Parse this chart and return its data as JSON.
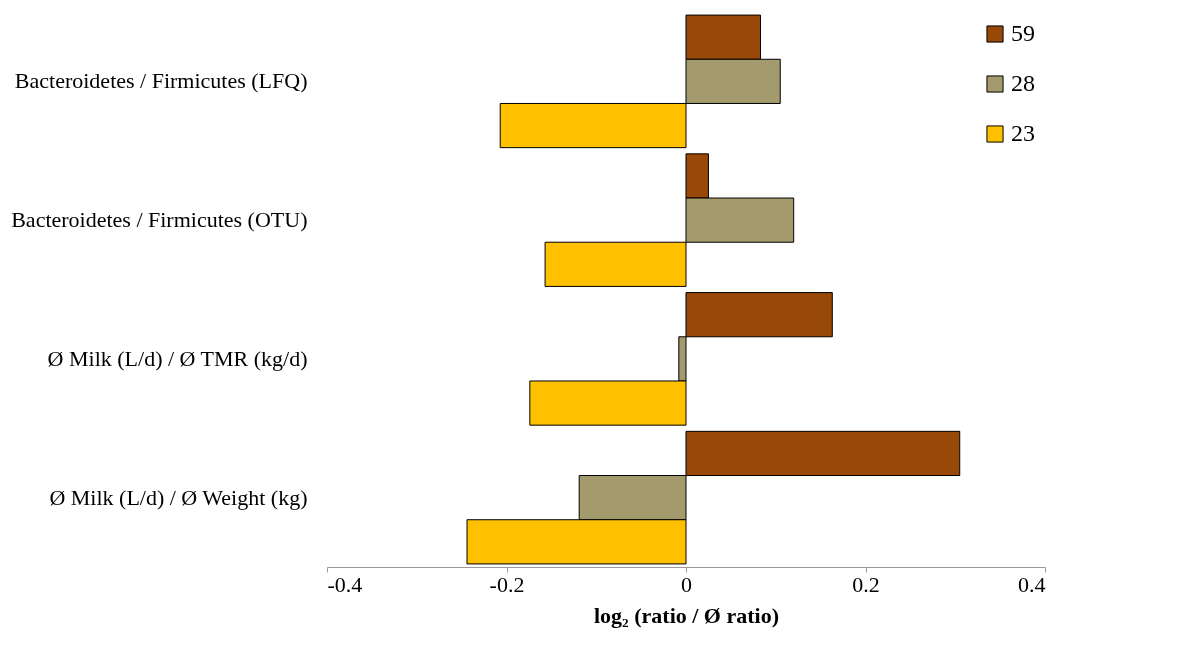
{
  "chart_data": {
    "type": "bar",
    "orientation": "horizontal",
    "xlabel": "log₂ (ratio / Ø ratio)",
    "categories": [
      "Bacteroidetes / Firmicutes (LFQ)",
      "Bacteroidetes / Firmicutes (OTU)",
      "Ø Milk (L/d) / Ø TMR (kg/d)",
      "Ø Milk (L/d) / Ø Weight (kg)"
    ],
    "series": [
      {
        "name": "59",
        "color": "#984807",
        "values": [
          0.083,
          0.025,
          0.163,
          0.305
        ]
      },
      {
        "name": "28",
        "color": "#a39b6e",
        "values": [
          0.105,
          0.12,
          -0.008,
          -0.119
        ]
      },
      {
        "name": "23",
        "color": "#ffc000",
        "values": [
          -0.207,
          -0.157,
          -0.174,
          -0.244
        ]
      }
    ],
    "xlim": [
      -0.4,
      0.4
    ],
    "xticks": [
      -0.4,
      -0.2,
      0,
      0.2,
      0.4
    ],
    "grid": false,
    "legend": "top right"
  }
}
